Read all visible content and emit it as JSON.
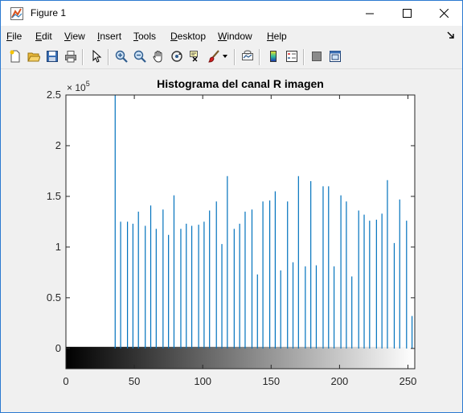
{
  "window": {
    "title": "Figure 1",
    "controls": {
      "minimize": "minimize-icon",
      "maximize": "maximize-icon",
      "close": "close-icon"
    }
  },
  "menu": [
    {
      "label": "File",
      "mnemonic": "F",
      "rest": "ile"
    },
    {
      "label": "Edit",
      "mnemonic": "E",
      "rest": "dit"
    },
    {
      "label": "View",
      "mnemonic": "V",
      "rest": "iew"
    },
    {
      "label": "Insert",
      "mnemonic": "I",
      "rest": "nsert"
    },
    {
      "label": "Tools",
      "mnemonic": "T",
      "rest": "ools"
    },
    {
      "label": "Desktop",
      "mnemonic": "D",
      "rest": "esktop"
    },
    {
      "label": "Window",
      "mnemonic": "W",
      "rest": "indow"
    },
    {
      "label": "Help",
      "mnemonic": "H",
      "rest": "elp"
    }
  ],
  "toolbar": [
    "new-figure-icon",
    "open-file-icon",
    "save-icon",
    "print-icon",
    "edit-plot-arrow-icon",
    "zoom-in-icon",
    "zoom-out-icon",
    "pan-hand-icon",
    "rotate-3d-icon",
    "data-cursor-icon",
    "brush-icon",
    "brush-dropdown-icon",
    "link-plot-icon",
    "insert-colorbar-icon",
    "insert-legend-icon",
    "hide-plot-tools-icon",
    "show-plot-tools-icon"
  ],
  "colors": {
    "bar": "#0072bd",
    "window_border": "#2b79d0",
    "background": "#f0f0f0"
  },
  "chart_data": {
    "type": "bar",
    "title": "Histograma del canal R imagen",
    "xlabel": "",
    "ylabel": "",
    "exponent_label": "× 10",
    "exponent_power": "5",
    "xlim": [
      0,
      255
    ],
    "ylim": [
      -20000,
      250000
    ],
    "xticks": [
      0,
      50,
      100,
      150,
      200,
      250
    ],
    "xtick_labels": [
      "0",
      "50",
      "100",
      "150",
      "200",
      "250"
    ],
    "yticks": [
      0,
      50000,
      100000,
      150000,
      200000,
      250000
    ],
    "ytick_labels": [
      "0",
      "0.5",
      "1",
      "1.5",
      "2",
      "2.5"
    ],
    "colorbar": "gray",
    "x": [
      36,
      40,
      45,
      49,
      53,
      58,
      62,
      66,
      71,
      75,
      79,
      84,
      88,
      92,
      97,
      101,
      105,
      110,
      114,
      118,
      123,
      127,
      131,
      136,
      140,
      144,
      149,
      153,
      157,
      162,
      166,
      170,
      175,
      179,
      183,
      188,
      192,
      196,
      201,
      205,
      209,
      214,
      218,
      222,
      227,
      231,
      235,
      240,
      244,
      249,
      253
    ],
    "values": [
      250000,
      125000,
      125000,
      123000,
      135000,
      121000,
      141000,
      118000,
      137000,
      112000,
      151000,
      118000,
      123000,
      121000,
      122000,
      125000,
      136000,
      145000,
      103000,
      170000,
      118000,
      123000,
      135000,
      137000,
      73000,
      145000,
      146000,
      155000,
      77000,
      145000,
      85000,
      170000,
      81000,
      165000,
      82000,
      160000,
      160000,
      81000,
      151000,
      145000,
      71000,
      136000,
      132000,
      126000,
      127000,
      133000,
      166000,
      104000,
      147000,
      126000,
      32000
    ]
  }
}
